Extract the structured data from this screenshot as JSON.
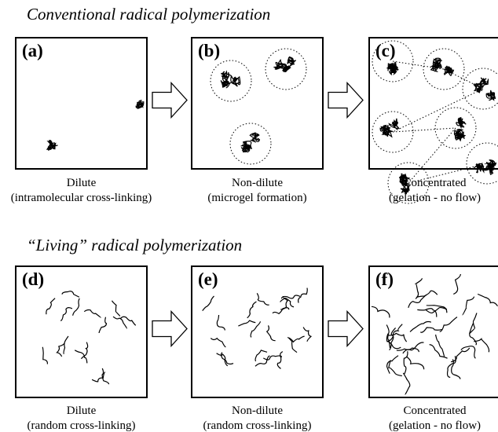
{
  "sections": [
    {
      "title": "Conventional radical polymerization",
      "panels": [
        {
          "label": "(a)",
          "caption": [
            "Dilute",
            "(intramolecular cross-linking)"
          ]
        },
        {
          "label": "(b)",
          "caption": [
            "Non-dilute",
            "(microgel formation)"
          ]
        },
        {
          "label": "(c)",
          "caption": [
            "Concentrated",
            "(gelation - no flow)"
          ]
        }
      ]
    },
    {
      "title": "“Living” radical polymerization",
      "panels": [
        {
          "label": "(d)",
          "caption": [
            "Dilute",
            "(random cross-linking)"
          ]
        },
        {
          "label": "(e)",
          "caption": [
            "Non-dilute",
            "(random cross-linking)"
          ]
        },
        {
          "label": "(f)",
          "caption": [
            "Concentrated",
            "(gelation - no flow)"
          ]
        }
      ]
    }
  ]
}
